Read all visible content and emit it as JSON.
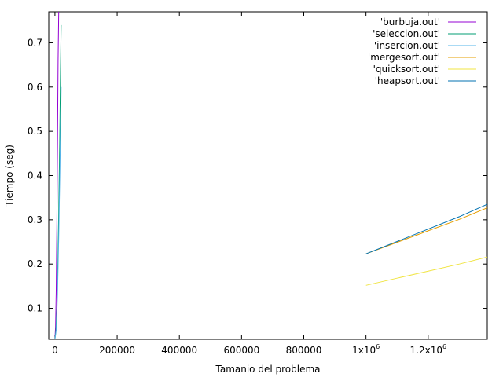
{
  "chart_data": {
    "type": "line",
    "xlabel": "Tamanio del problema",
    "ylabel": "Tiempo (seg)",
    "xlim": [
      -20000,
      1390000
    ],
    "ylim": [
      0.03,
      0.77
    ],
    "x_ticks": [
      {
        "value": 0,
        "label": "0"
      },
      {
        "value": 200000,
        "label": "200000"
      },
      {
        "value": 400000,
        "label": "400000"
      },
      {
        "value": 600000,
        "label": "600000"
      },
      {
        "value": 800000,
        "label": "800000"
      },
      {
        "value": 1000000,
        "mantissa": "1x10",
        "exponent": "6"
      },
      {
        "value": 1200000,
        "mantissa": "1.2x10",
        "exponent": "6"
      }
    ],
    "y_ticks": [
      {
        "value": 0.1,
        "label": "0.1"
      },
      {
        "value": 0.2,
        "label": "0.2"
      },
      {
        "value": 0.3,
        "label": "0.3"
      },
      {
        "value": 0.4,
        "label": "0.4"
      },
      {
        "value": 0.5,
        "label": "0.5"
      },
      {
        "value": 0.6,
        "label": "0.6"
      },
      {
        "value": 0.7,
        "label": "0.7"
      }
    ],
    "legend_position": "top-right",
    "series": [
      {
        "name": "'burbuja.out'",
        "color": "#9400d3",
        "x": [
          0,
          2000,
          4000,
          6000,
          8000,
          10000,
          12000
        ],
        "y": [
          0.03,
          0.06,
          0.14,
          0.28,
          0.46,
          0.66,
          0.77
        ]
      },
      {
        "name": "'seleccion.out'",
        "color": "#009e73",
        "x": [
          0,
          3000,
          6000,
          9000,
          12000,
          15000,
          18000,
          20000
        ],
        "y": [
          0.03,
          0.05,
          0.1,
          0.19,
          0.32,
          0.47,
          0.64,
          0.74
        ]
      },
      {
        "name": "'insercion.out'",
        "color": "#56b4e9",
        "x": [
          0,
          4000,
          8000,
          12000,
          16000,
          20000
        ],
        "y": [
          0.03,
          0.05,
          0.13,
          0.26,
          0.41,
          0.6
        ]
      },
      {
        "name": "'mergesort.out'",
        "color": "#e69f00",
        "x": [
          1000000,
          1100000,
          1200000,
          1300000,
          1390000
        ],
        "y": [
          0.223,
          0.249,
          0.275,
          0.301,
          0.327
        ]
      },
      {
        "name": "'quicksort.out'",
        "color": "#f0e442",
        "x": [
          1000000,
          1100000,
          1200000,
          1300000,
          1390000
        ],
        "y": [
          0.152,
          0.168,
          0.184,
          0.2,
          0.216
        ]
      },
      {
        "name": "'heapsort.out'",
        "color": "#0072b2",
        "x": [
          1000000,
          1100000,
          1200000,
          1300000,
          1390000
        ],
        "y": [
          0.223,
          0.251,
          0.279,
          0.307,
          0.335
        ]
      }
    ]
  }
}
